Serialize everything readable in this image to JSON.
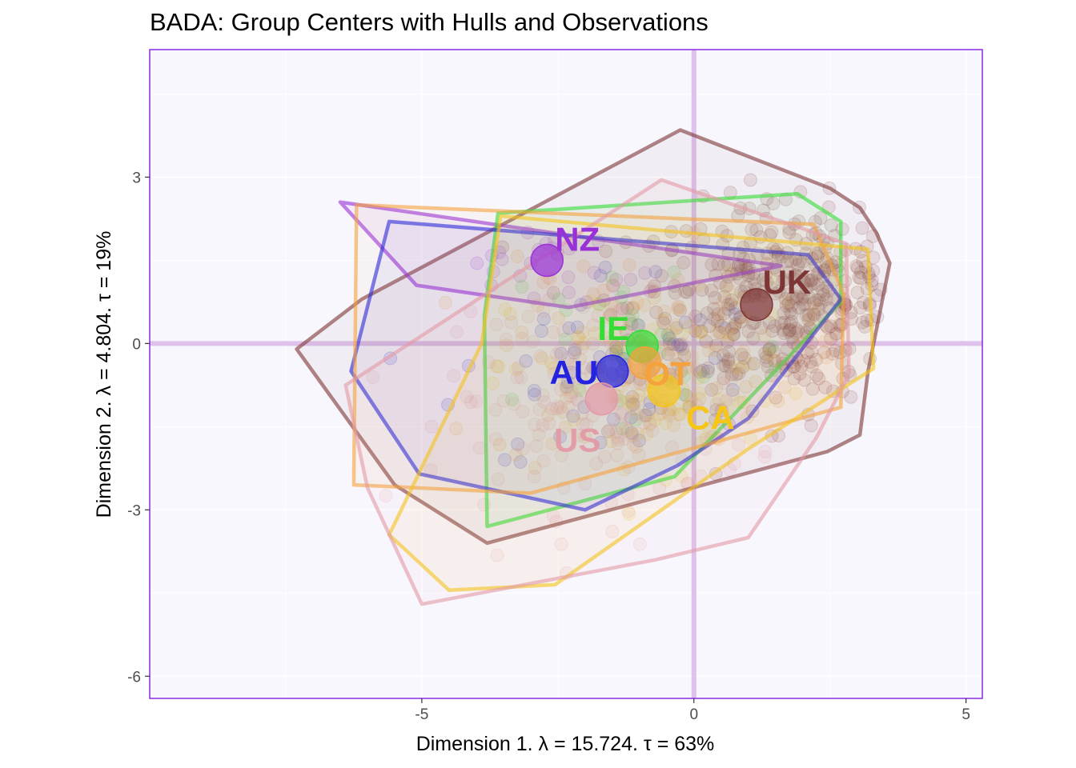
{
  "chart_data": {
    "type": "scatter",
    "title": "BADA: Group Centers with Hulls and Observations",
    "xlabel": "Dimension 1.   λ = 15.724.  τ = 63%",
    "ylabel": "Dimension 2.   λ = 4.804.  τ = 19%",
    "xlim": [
      -10,
      5.3
    ],
    "ylim": [
      -6.4,
      5.3
    ],
    "x_ticks": [
      -5,
      0,
      5
    ],
    "x_tick_labels": [
      "-5",
      "0",
      "5"
    ],
    "y_ticks": [
      3,
      0,
      -3,
      -6
    ],
    "y_tick_labels": [
      "3",
      "0",
      "-3",
      "-6"
    ],
    "grid": true,
    "reference_lines": {
      "x": 0,
      "y": 0,
      "color": "#d7b3e6"
    },
    "panel_background": "#f8f7fe",
    "panel_border": "#8a2be2",
    "groups": [
      {
        "name": "UK",
        "color": "#7d3535",
        "center": [
          1.15,
          0.7
        ],
        "hull": [
          [
            -0.25,
            3.85
          ],
          [
            2.5,
            2.8
          ],
          [
            3.05,
            2.45
          ],
          [
            3.35,
            2.0
          ],
          [
            3.6,
            1.45
          ],
          [
            3.2,
            -0.5
          ],
          [
            3.05,
            -1.65
          ],
          [
            2.45,
            -1.95
          ],
          [
            -3.8,
            -3.6
          ],
          [
            -5.5,
            -2.55
          ],
          [
            -7.3,
            -0.1
          ],
          [
            -6.1,
            0.8
          ]
        ]
      },
      {
        "name": "NZ",
        "color": "#9a31d8",
        "center": [
          -2.7,
          1.5
        ],
        "hull": [
          [
            -6.5,
            2.55
          ],
          [
            1.6,
            1.4
          ],
          [
            -2.3,
            0.65
          ],
          [
            -5.1,
            1.05
          ]
        ]
      },
      {
        "name": "IE",
        "color": "#33dd33",
        "center": [
          -0.95,
          -0.05
        ],
        "hull": [
          [
            -3.6,
            2.35
          ],
          [
            1.9,
            2.7
          ],
          [
            2.7,
            2.2
          ],
          [
            2.7,
            0.75
          ],
          [
            -0.35,
            -2.4
          ],
          [
            -3.8,
            -3.3
          ],
          [
            -3.85,
            0.5
          ]
        ]
      },
      {
        "name": "AU",
        "color": "#2424e0",
        "center": [
          -1.5,
          -0.5
        ],
        "hull": [
          [
            -5.6,
            2.2
          ],
          [
            2.1,
            1.6
          ],
          [
            2.7,
            0.8
          ],
          [
            1.0,
            -1.35
          ],
          [
            -0.3,
            -2.2
          ],
          [
            -2.0,
            -3.0
          ],
          [
            -5.05,
            -2.35
          ],
          [
            -6.3,
            -0.5
          ]
        ]
      },
      {
        "name": "OT",
        "color": "#f5a23c",
        "center": [
          -0.9,
          -0.35
        ],
        "hull": [
          [
            -6.2,
            2.5
          ],
          [
            2.2,
            2.15
          ],
          [
            2.75,
            0.9
          ],
          [
            2.7,
            -1.15
          ],
          [
            -3.0,
            -2.7
          ],
          [
            -6.25,
            -2.55
          ]
        ]
      },
      {
        "name": "CA",
        "color": "#f5c518",
        "center": [
          -0.55,
          -0.85
        ],
        "hull": [
          [
            -3.55,
            2.3
          ],
          [
            3.2,
            1.7
          ],
          [
            3.3,
            -0.45
          ],
          [
            1.0,
            -1.9
          ],
          [
            -2.55,
            -4.35
          ],
          [
            -4.5,
            -4.45
          ],
          [
            -5.6,
            -3.45
          ],
          [
            -3.9,
            0.0
          ]
        ]
      },
      {
        "name": "US",
        "color": "#e39aa5",
        "center": [
          -1.7,
          -1.0
        ],
        "hull": [
          [
            -0.6,
            2.95
          ],
          [
            2.8,
            1.8
          ],
          [
            2.85,
            -0.55
          ],
          [
            2.25,
            -1.7
          ],
          [
            1.0,
            -3.5
          ],
          [
            -0.7,
            -3.9
          ],
          [
            -5.0,
            -4.7
          ],
          [
            -6.0,
            -2.6
          ],
          [
            -6.4,
            -0.75
          ]
        ]
      }
    ]
  }
}
